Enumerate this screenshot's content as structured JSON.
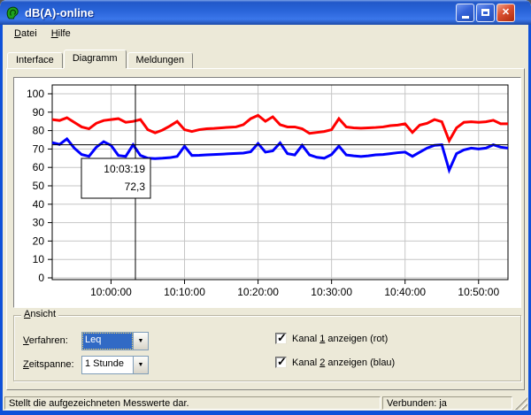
{
  "window": {
    "title": "dB(A)-online"
  },
  "icons": {
    "ear": "ear-icon",
    "dropdown_arrow": "▼",
    "check_glyph": "✓",
    "close_glyph": "✕"
  },
  "menu": {
    "items": [
      {
        "pre": "",
        "u": "D",
        "post": "atei"
      },
      {
        "pre": "",
        "u": "H",
        "post": "ilfe"
      }
    ]
  },
  "tabs": [
    {
      "label": "Interface",
      "active": false
    },
    {
      "label": "Diagramm",
      "active": true
    },
    {
      "label": "Meldungen",
      "active": false
    }
  ],
  "chart_data": {
    "type": "line",
    "x_start": "09:52:00",
    "x_step_seconds": 60,
    "x_ticks": [
      "10:00:00",
      "10:10:00",
      "10:20:00",
      "10:30:00",
      "10:40:00",
      "10:50:00"
    ],
    "ylim": [
      0,
      100
    ],
    "y_tick_step": 10,
    "grid": true,
    "series": [
      {
        "name": "Kanal 1 (rot)",
        "color": "#ff0000",
        "values": [
          86,
          85.5,
          87,
          84.5,
          82,
          81,
          84,
          85.5,
          86,
          86.5,
          84.5,
          85,
          86,
          80.5,
          78.8,
          80.3,
          82.5,
          85,
          80.5,
          79.5,
          80.5,
          81,
          81.2,
          81.5,
          81.8,
          82,
          83.2,
          86.5,
          88.3,
          85.1,
          87.5,
          83.2,
          82,
          82,
          81,
          78.5,
          79,
          79.5,
          80.5,
          86.5,
          82,
          81.5,
          81.3,
          81.5,
          81.7,
          82,
          82.7,
          83,
          83.7,
          79,
          83,
          84,
          86,
          84.8,
          74.5,
          81.5,
          84.5,
          84.8,
          84.5,
          84.8,
          85.6,
          83.7,
          83.7
        ]
      },
      {
        "name": "Kanal 2 (blau)",
        "color": "#0000ff",
        "values": [
          73.5,
          72.5,
          75.5,
          70.5,
          67,
          66,
          71,
          74,
          72,
          66.5,
          66,
          72.3,
          66.5,
          65,
          64.8,
          65,
          65.3,
          66,
          71.5,
          66.5,
          66.6,
          66.8,
          67,
          67.2,
          67.4,
          67.6,
          67.8,
          68.5,
          73,
          68.3,
          69,
          73.3,
          67.5,
          66.8,
          72,
          66.8,
          65.5,
          65,
          67,
          71.6,
          66.8,
          66.3,
          65.9,
          66.3,
          66.8,
          67,
          67.5,
          68,
          68.3,
          66,
          68.3,
          70.5,
          72,
          72.3,
          58.5,
          67.5,
          69.5,
          70.5,
          70,
          70.5,
          72.3,
          71,
          70.5
        ]
      }
    ],
    "cursor": {
      "time": "10:03:19",
      "value": 72.3,
      "value_label": "72,3"
    }
  },
  "ansicht": {
    "legend": {
      "pre": "",
      "u": "A",
      "post": "nsicht"
    },
    "verfahren": {
      "label": {
        "pre": "",
        "u": "V",
        "post": "erfahren:"
      },
      "value": "Leq"
    },
    "zeitspanne": {
      "label": {
        "pre": "",
        "u": "Z",
        "post": "eitspanne:"
      },
      "value": "1 Stunde"
    },
    "kanal1": {
      "label": {
        "pre": "Kanal ",
        "u": "1",
        "post": " anzeigen (rot)"
      },
      "checked": true
    },
    "kanal2": {
      "label": {
        "pre": "Kanal ",
        "u": "2",
        "post": " anzeigen (blau)"
      },
      "checked": true
    }
  },
  "statusbar": {
    "message": "Stellt die aufgezeichneten Messwerte dar.",
    "connection": "Verbunden: ja"
  }
}
